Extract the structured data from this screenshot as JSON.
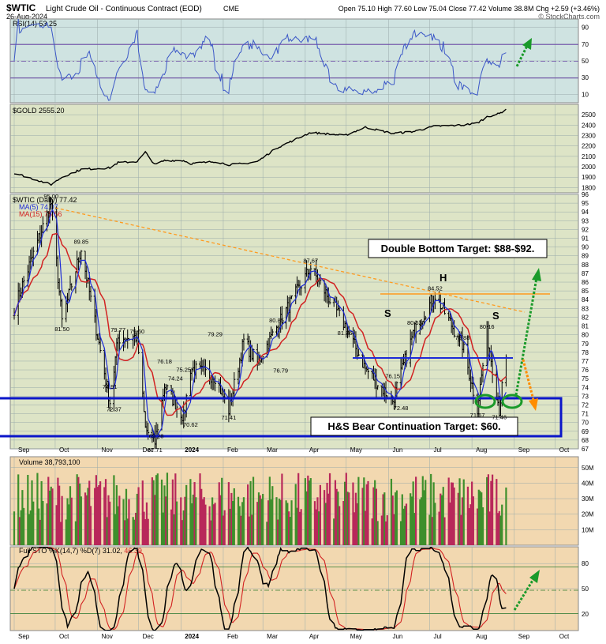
{
  "header": {
    "symbol": "$WTIC",
    "name": "Light Crude Oil - Continuous Contract (EOD)",
    "exchange": "CME",
    "date": "26-Aug-2024",
    "stats": "Open 75.10  High 77.60  Low 75.04  Close 77.42  Volume 38.8M  Chg +2.59 (+3.46%)",
    "credit": "© StockCharts.com"
  },
  "panels": {
    "rsi": {
      "label": "RSI(14) 53.25",
      "ticks": [
        90,
        70,
        50,
        30,
        10
      ],
      "range": [
        0,
        100
      ]
    },
    "gold": {
      "label": "$GOLD 2555.20",
      "ticks": [
        2500,
        2400,
        2300,
        2200,
        2100,
        2000,
        1900,
        1800
      ],
      "range": [
        1750,
        2600
      ]
    },
    "price": {
      "label": "$WTIC (Daily) 77.42",
      "ma5": "MA(5) 74.07",
      "ma15": "MA(15) 75.56",
      "range": [
        67,
        96
      ],
      "ticks": [
        96,
        95,
        94,
        93,
        92,
        91,
        90,
        89,
        88,
        87,
        86,
        85,
        84,
        83,
        82,
        81,
        80,
        79,
        78,
        77,
        76,
        75,
        74,
        73,
        72,
        71,
        70,
        69,
        68,
        67
      ]
    },
    "volume": {
      "label": "Volume 38,793,100",
      "ticks": [
        "50M",
        "40M",
        "30M",
        "20M",
        "10M"
      ],
      "tick_values": [
        50,
        40,
        30,
        20,
        10
      ],
      "range": [
        0,
        57
      ]
    },
    "sto": {
      "label": "Full STO %K(14,7) %D(7) 31.02,",
      "label_red": "46.39",
      "ticks": [
        80,
        50,
        20
      ],
      "range": [
        0,
        100
      ]
    }
  },
  "months": [
    "Sep",
    "Oct",
    "Nov",
    "Dec",
    "2024",
    "Feb",
    "Mar",
    "Apr",
    "May",
    "Jun",
    "Jul",
    "Aug",
    "Sep",
    "Oct"
  ],
  "annotations": {
    "double_bottom": "Double Bottom Target: $88-$92.",
    "hs_target": "H&S Bear Continuation Target: $60.",
    "left_shoulder": "S",
    "head": "H",
    "right_shoulder": "S"
  },
  "chart_data": {
    "type": "line",
    "x": [
      "2023-09-01",
      "2023-09-28",
      "2023-10-06",
      "2023-10-20",
      "2023-11-10",
      "2023-11-16",
      "2023-11-30",
      "2023-12-06",
      "2023-12-13",
      "2023-12-20",
      "2024-01-03",
      "2024-01-08",
      "2024-01-26",
      "2024-02-05",
      "2024-02-16",
      "2024-02-26",
      "2024-03-11",
      "2024-04-05",
      "2024-04-30",
      "2024-05-15",
      "2024-06-04",
      "2024-06-20",
      "2024-07-05",
      "2024-07-25",
      "2024-08-05",
      "2024-08-12",
      "2024-08-21",
      "2024-08-26"
    ],
    "series": [
      {
        "name": "$WTIC",
        "values": [
          83.0,
          95.0,
          81.5,
          89.85,
          72.37,
          79.6,
          79.77,
          69.28,
          67.71,
          74.24,
          70.62,
          76.18,
          75.25,
          71.41,
          79.29,
          76.79,
          80.85,
          87.67,
          81.06,
          76.15,
          72.48,
          80.62,
          84.52,
          78.88,
          71.67,
          80.16,
          71.46,
          77.42
        ]
      },
      {
        "name": "$GOLD",
        "values": [
          1940,
          1830,
          1900,
          1975,
          1990,
          2040,
          2050,
          2140,
          2020,
          2060,
          2060,
          2030,
          2050,
          2020,
          2030,
          2050,
          2180,
          2330,
          2300,
          2380,
          2320,
          2340,
          2390,
          2400,
          2420,
          2480,
          2510,
          2555
        ]
      }
    ],
    "labeled_points": [
      95.0,
      89.85,
      81.5,
      79.77,
      79.6,
      74.91,
      72.37,
      76.18,
      74.24,
      75.25,
      70.62,
      69.28,
      67.71,
      79.29,
      71.41,
      80.85,
      76.79,
      87.67,
      81.06,
      80.62,
      76.15,
      72.48,
      84.52,
      78.88,
      80.16,
      71.67,
      71.46
    ],
    "ylim": [
      67,
      96
    ]
  }
}
